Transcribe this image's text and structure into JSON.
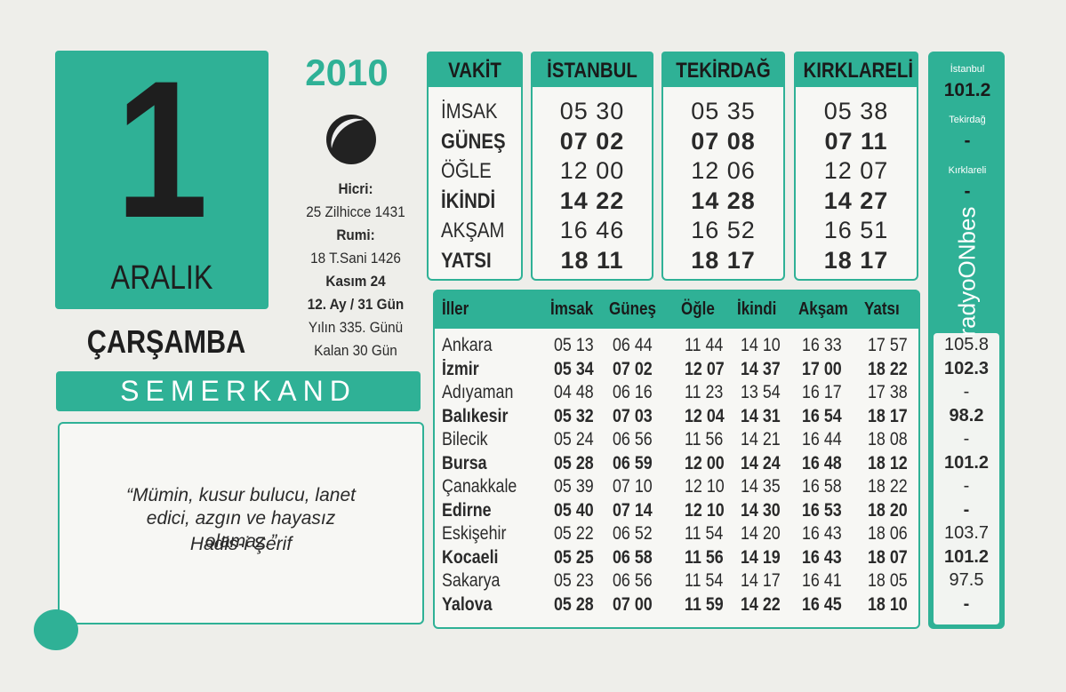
{
  "date": {
    "year": "2010",
    "day": "1",
    "month": "ARALIK",
    "weekday": "ÇARŞAMBA"
  },
  "info": {
    "hicri_label": "Hicri:",
    "hicri": "25 Zilhicce 1431",
    "rumi_label": "Rumi:",
    "rumi": "18 T.Sani 1426",
    "kasim": "Kasım 24",
    "month_days": "12. Ay / 31 Gün",
    "day_of_year": "Yılın 335. Günü",
    "remaining": "Kalan 30 Gün"
  },
  "brand": "SEMERKAND",
  "quote": {
    "text": "“Mümin, kusur bulucu, lanet edici, azgın ve hayasız olamaz.”",
    "source": "Hadis-i Şerif"
  },
  "main_table": {
    "headers": [
      "VAKİT",
      "İSTANBUL",
      "TEKİRDAĞ",
      "KIRKLARELİ"
    ],
    "rows": [
      [
        "İMSAK",
        "05 30",
        "05 35",
        "05 38"
      ],
      [
        "GÜNEŞ",
        "07 02",
        "07 08",
        "07 11"
      ],
      [
        "ÖĞLE",
        "12 00",
        "12 06",
        "12 07"
      ],
      [
        "İKİNDİ",
        "14 22",
        "14 28",
        "14 27"
      ],
      [
        "AKŞAM",
        "16 46",
        "16 52",
        "16 51"
      ],
      [
        "YATSI",
        "18 11",
        "18 17",
        "18 17"
      ]
    ]
  },
  "cities_table": {
    "headers": [
      "İller",
      "İmsak",
      "Güneş",
      "Öğle",
      "İkindi",
      "Akşam",
      "Yatsı"
    ],
    "rows": [
      [
        "Ankara",
        "05 13",
        "06 44",
        "11 44",
        "14 10",
        "16 33",
        "17 57"
      ],
      [
        "İzmir",
        "05 34",
        "07 02",
        "12 07",
        "14 37",
        "17 00",
        "18 22"
      ],
      [
        "Adıyaman",
        "04 48",
        "06 16",
        "11 23",
        "13 54",
        "16 17",
        "17 38"
      ],
      [
        "Balıkesir",
        "05 32",
        "07 03",
        "12 04",
        "14 31",
        "16 54",
        "18 17"
      ],
      [
        "Bilecik",
        "05 24",
        "06 56",
        "11 56",
        "14 21",
        "16 44",
        "18 08"
      ],
      [
        "Bursa",
        "05 28",
        "06 59",
        "12 00",
        "14 24",
        "16 48",
        "18 12"
      ],
      [
        "Çanakkale",
        "05 39",
        "07 10",
        "12 10",
        "14 35",
        "16 58",
        "18 22"
      ],
      [
        "Edirne",
        "05 40",
        "07 14",
        "12 10",
        "14 30",
        "16 53",
        "18 20"
      ],
      [
        "Eskişehir",
        "05 22",
        "06 52",
        "11 54",
        "14 20",
        "16 43",
        "18 06"
      ],
      [
        "Kocaeli",
        "05 25",
        "06 58",
        "11 56",
        "14 19",
        "16 43",
        "18 07"
      ],
      [
        "Sakarya",
        "05 23",
        "06 56",
        "11 54",
        "14 17",
        "16 41",
        "18 05"
      ],
      [
        "Yalova",
        "05 28",
        "07 00",
        "11 59",
        "14 22",
        "16 45",
        "18 10"
      ]
    ]
  },
  "radio": {
    "brand": "radyoONbes",
    "stations": [
      {
        "city": "İstanbul",
        "freq": "101.2"
      },
      {
        "city": "Tekirdağ",
        "freq": "-"
      },
      {
        "city": "Kırklareli",
        "freq": "-"
      }
    ],
    "city_freqs": [
      "105.8",
      "102.3",
      "-",
      "98.2",
      "-",
      "101.2",
      "-",
      "-",
      "103.7",
      "101.2",
      "97.5",
      "-"
    ]
  }
}
